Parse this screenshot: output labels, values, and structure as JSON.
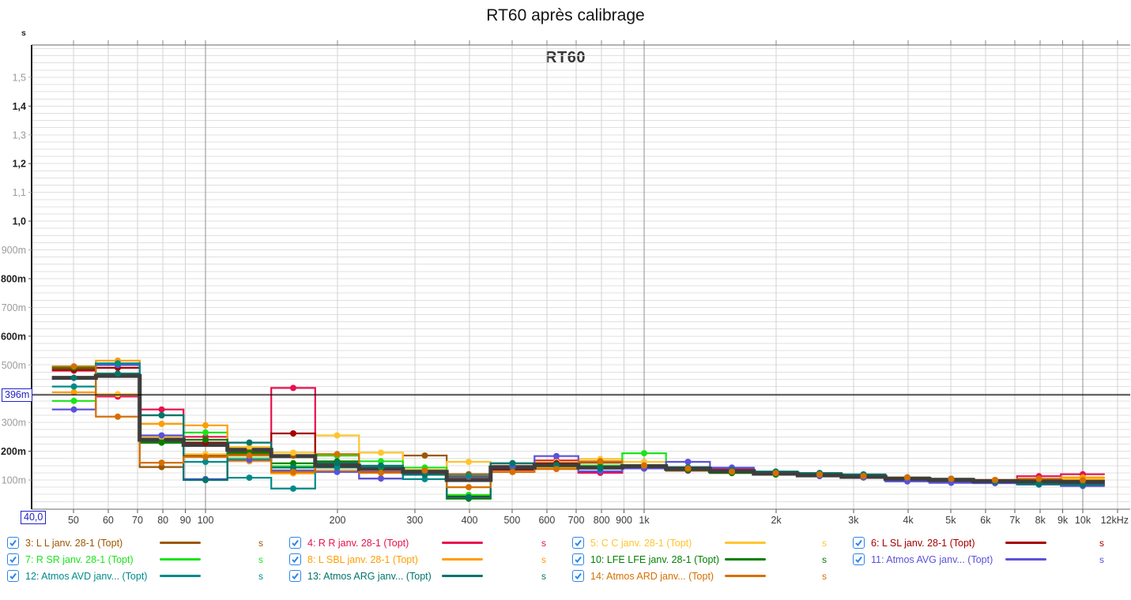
{
  "window": {
    "title": "RT60 après calibrage"
  },
  "chart": {
    "inner_title": "RT60",
    "y_unit": "s",
    "target_line": {
      "label": "396m",
      "value_s": 0.396
    },
    "cursor_readout": {
      "label": "40,0"
    },
    "y_ticks": [
      {
        "value_s": 1.5,
        "label": "1,5",
        "emphasis": false
      },
      {
        "value_s": 1.4,
        "label": "1,4",
        "emphasis": true
      },
      {
        "value_s": 1.3,
        "label": "1,3",
        "emphasis": false
      },
      {
        "value_s": 1.2,
        "label": "1,2",
        "emphasis": true
      },
      {
        "value_s": 1.1,
        "label": "1,1",
        "emphasis": false
      },
      {
        "value_s": 1.0,
        "label": "1,0",
        "emphasis": true
      },
      {
        "value_s": 0.9,
        "label": "900m",
        "emphasis": false
      },
      {
        "value_s": 0.8,
        "label": "800m",
        "emphasis": true
      },
      {
        "value_s": 0.7,
        "label": "700m",
        "emphasis": false
      },
      {
        "value_s": 0.6,
        "label": "600m",
        "emphasis": true
      },
      {
        "value_s": 0.5,
        "label": "500m",
        "emphasis": false
      },
      {
        "value_s": 0.3,
        "label": "300m",
        "emphasis": false
      },
      {
        "value_s": 0.2,
        "label": "200m",
        "emphasis": true
      },
      {
        "value_s": 0.1,
        "label": "100m",
        "emphasis": false
      }
    ],
    "x_ticks": [
      {
        "hz": 50,
        "label": "50",
        "major": false
      },
      {
        "hz": 60,
        "label": "60",
        "major": false
      },
      {
        "hz": 70,
        "label": "70",
        "major": false
      },
      {
        "hz": 80,
        "label": "80",
        "major": false
      },
      {
        "hz": 90,
        "label": "90",
        "major": false
      },
      {
        "hz": 100,
        "label": "100",
        "major": true
      },
      {
        "hz": 200,
        "label": "200",
        "major": false
      },
      {
        "hz": 300,
        "label": "300",
        "major": false
      },
      {
        "hz": 400,
        "label": "400",
        "major": false
      },
      {
        "hz": 500,
        "label": "500",
        "major": false
      },
      {
        "hz": 600,
        "label": "600",
        "major": false
      },
      {
        "hz": 700,
        "label": "700",
        "major": false
      },
      {
        "hz": 800,
        "label": "800",
        "major": false
      },
      {
        "hz": 900,
        "label": "900",
        "major": false
      },
      {
        "hz": 1000,
        "label": "1k",
        "major": true
      },
      {
        "hz": 2000,
        "label": "2k",
        "major": false
      },
      {
        "hz": 3000,
        "label": "3k",
        "major": false
      },
      {
        "hz": 4000,
        "label": "4k",
        "major": false
      },
      {
        "hz": 5000,
        "label": "5k",
        "major": false
      },
      {
        "hz": 6000,
        "label": "6k",
        "major": false
      },
      {
        "hz": 7000,
        "label": "7k",
        "major": false
      },
      {
        "hz": 8000,
        "label": "8k",
        "major": false
      },
      {
        "hz": 9000,
        "label": "9k",
        "major": false
      },
      {
        "hz": 10000,
        "label": "10k",
        "major": true
      },
      {
        "hz": 12000,
        "label": "12kHz",
        "major": false
      }
    ]
  },
  "legend": {
    "unit_suffix": "s",
    "checkbox_color": "#2e86e8",
    "items": [
      {
        "id": "3",
        "label": "3: L L janv. 28-1 (Topt)",
        "color": "#9c5700",
        "checked": true
      },
      {
        "id": "4",
        "label": "4: R R janv. 28-1 (Topt)",
        "color": "#e8104e",
        "checked": true
      },
      {
        "id": "5",
        "label": "5: C C janv. 28-1 (Topt)",
        "color": "#ffc52f",
        "checked": true
      },
      {
        "id": "6",
        "label": "6: L SL janv. 28-1 (Topt)",
        "color": "#a50000",
        "checked": true
      },
      {
        "id": "7",
        "label": "7: R SR janv. 28-1 (Topt)",
        "color": "#1be41b",
        "checked": true
      },
      {
        "id": "8",
        "label": "8: L SBL janv. 28-1 (Topt)",
        "color": "#ff9e00",
        "checked": true
      },
      {
        "id": "10",
        "label": "10: LFE LFE janv. 28-1 (Topt)",
        "color": "#038003",
        "checked": true
      },
      {
        "id": "11",
        "label": "11: Atmos AVG janv... (Topt)",
        "color": "#5b51db",
        "checked": true
      },
      {
        "id": "12",
        "label": "12: Atmos AVD janv... (Topt)",
        "color": "#008b8b",
        "checked": true
      },
      {
        "id": "13",
        "label": "13: Atmos ARG janv... (Topt)",
        "color": "#00756b",
        "checked": true
      },
      {
        "id": "14",
        "label": "14: Atmos ARD janv... (Topt)",
        "color": "#d66f00",
        "checked": true
      }
    ]
  },
  "chart_data": {
    "type": "line",
    "subtype": "third-octave-step-rt60",
    "x_scale": "log",
    "x_range_hz": [
      40,
      12400
    ],
    "y_range_s": [
      0,
      1.61
    ],
    "ylabel_unit": "s",
    "grid": true,
    "target_line_s": 0.396,
    "band_centers_hz": [
      50,
      63,
      80,
      100,
      125,
      160,
      200,
      250,
      315,
      400,
      500,
      630,
      800,
      1000,
      1250,
      1600,
      2000,
      2500,
      3150,
      4000,
      5000,
      6300,
      8000,
      10000
    ],
    "series": [
      {
        "name": "3: L L",
        "color": "#9c5700",
        "thick": false,
        "values_ms": [
          490,
          500,
          145,
          185,
          190,
          185,
          160,
          140,
          185,
          120,
          150,
          148,
          160,
          148,
          140,
          133,
          122,
          116,
          111,
          104,
          100,
          98,
          96,
          95
        ]
      },
      {
        "name": "4: R R",
        "color": "#e8104e",
        "thick": false,
        "values_ms": [
          480,
          390,
          345,
          250,
          200,
          420,
          155,
          127,
          120,
          110,
          138,
          168,
          125,
          140,
          132,
          138,
          124,
          119,
          114,
          104,
          104,
          100,
          113,
          120
        ]
      },
      {
        "name": "5: C C",
        "color": "#ffc52f",
        "thick": false,
        "values_ms": [
          487,
          398,
          250,
          190,
          215,
          195,
          255,
          195,
          135,
          163,
          158,
          163,
          173,
          163,
          140,
          128,
          120,
          114,
          110,
          105,
          104,
          100,
          104,
          105
        ]
      },
      {
        "name": "6: L SL",
        "color": "#a50000",
        "thick": false,
        "values_ms": [
          483,
          490,
          230,
          230,
          195,
          262,
          185,
          140,
          122,
          45,
          135,
          158,
          150,
          140,
          134,
          129,
          120,
          114,
          109,
          100,
          96,
          94,
          99,
          95
        ]
      },
      {
        "name": "7: R SR",
        "color": "#1be41b",
        "thick": false,
        "values_ms": [
          375,
          505,
          230,
          265,
          175,
          148,
          185,
          165,
          143,
          48,
          148,
          140,
          150,
          193,
          140,
          129,
          119,
          114,
          109,
          100,
          95,
          90,
          86,
          84
        ]
      },
      {
        "name": "8: L SBL",
        "color": "#ff9e00",
        "thick": false,
        "values_ms": [
          405,
          515,
          295,
          290,
          165,
          123,
          133,
          105,
          128,
          113,
          128,
          143,
          140,
          150,
          134,
          124,
          119,
          114,
          109,
          104,
          100,
          99,
          104,
          109
        ]
      },
      {
        "name": "10: LFE LFE",
        "color": "#038003",
        "thick": false,
        "values_ms": [
          490,
          505,
          230,
          240,
          195,
          158,
          165,
          138,
          128,
          35,
          140,
          148,
          145,
          150,
          134,
          124,
          119,
          114,
          109,
          100,
          95,
          90,
          86,
          84
        ]
      },
      {
        "name": "11: Atmos AVG",
        "color": "#5b51db",
        "thick": false,
        "values_ms": [
          345,
          500,
          255,
          103,
          170,
          133,
          128,
          105,
          123,
          113,
          148,
          183,
          130,
          140,
          163,
          143,
          124,
          114,
          109,
          95,
          90,
          89,
          84,
          79
        ]
      },
      {
        "name": "12: Atmos AVD",
        "color": "#008b8b",
        "thick": false,
        "values_ms": [
          425,
          505,
          325,
          163,
          108,
          70,
          143,
          147,
          103,
          113,
          158,
          148,
          140,
          150,
          144,
          134,
          129,
          124,
          119,
          109,
          104,
          94,
          85,
          84
        ]
      },
      {
        "name": "13: Atmos ARG",
        "color": "#00756b",
        "thick": false,
        "values_ms": [
          455,
          470,
          325,
          100,
          230,
          143,
          158,
          150,
          118,
          40,
          158,
          153,
          140,
          150,
          144,
          134,
          129,
          124,
          119,
          109,
          104,
          94,
          85,
          84
        ]
      },
      {
        "name": "14: Atmos ARD",
        "color": "#d66f00",
        "thick": false,
        "values_ms": [
          495,
          320,
          160,
          180,
          185,
          128,
          190,
          125,
          133,
          75,
          128,
          138,
          165,
          150,
          140,
          129,
          124,
          119,
          114,
          109,
          104,
          100,
          104,
          99
        ]
      },
      {
        "name": "average",
        "color": "#3d3d3d",
        "thick": true,
        "values_ms": [
          455,
          462,
          240,
          222,
          205,
          183,
          150,
          138,
          128,
          100,
          143,
          152,
          143,
          148,
          139,
          131,
          122,
          116,
          111,
          104,
          100,
          96,
          95,
          93
        ]
      }
    ]
  }
}
